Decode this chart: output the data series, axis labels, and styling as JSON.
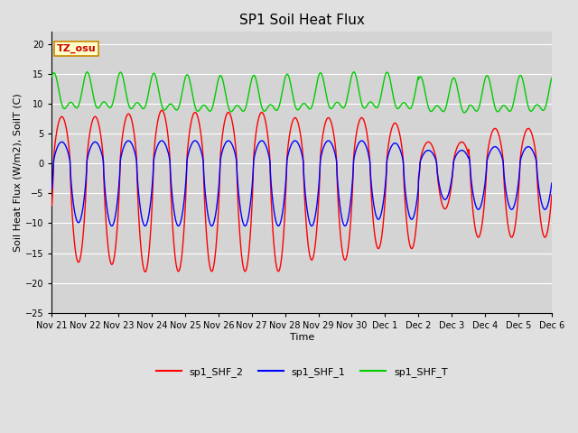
{
  "title": "SP1 Soil Heat Flux",
  "xlabel": "Time",
  "ylabel": "Soil Heat Flux (W/m2), SoilT (C)",
  "ylim": [
    -25,
    22
  ],
  "yticks": [
    -25,
    -20,
    -15,
    -10,
    -5,
    0,
    5,
    10,
    15,
    20
  ],
  "line_colors": {
    "sp1_SHF_2": "#ff0000",
    "sp1_SHF_1": "#0000ff",
    "sp1_SHF_T": "#00cc00"
  },
  "tz_label": "TZ_osu",
  "tz_box_facecolor": "#ffffcc",
  "tz_box_edgecolor": "#cc8800",
  "background_color": "#e0e0e0",
  "plot_bg_color": "#d4d4d4",
  "grid_color": "#ffffff",
  "title_fontsize": 11,
  "axis_label_fontsize": 8,
  "tick_label_fontsize": 7,
  "x_tick_labels": [
    "Nov 21",
    "Nov 22",
    "Nov 23",
    "Nov 24",
    "Nov 25",
    "Nov 26",
    "Nov 27",
    "Nov 28",
    "Nov 29",
    "Nov 30",
    "Dec 1",
    "Dec 2",
    "Dec 3",
    "Dec 4",
    "Dec 5",
    "Dec 6"
  ]
}
